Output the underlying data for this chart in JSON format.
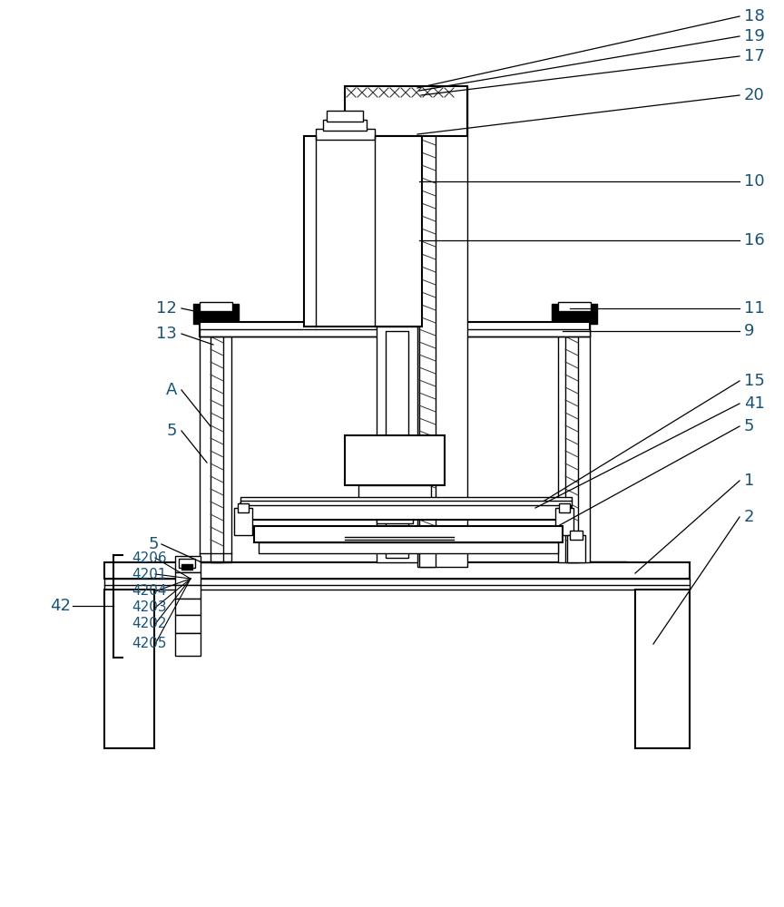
{
  "bg_color": "#ffffff",
  "line_color": "#000000",
  "label_color": "#1a5276",
  "figsize": [
    8.64,
    10.0
  ],
  "dpi": 100
}
